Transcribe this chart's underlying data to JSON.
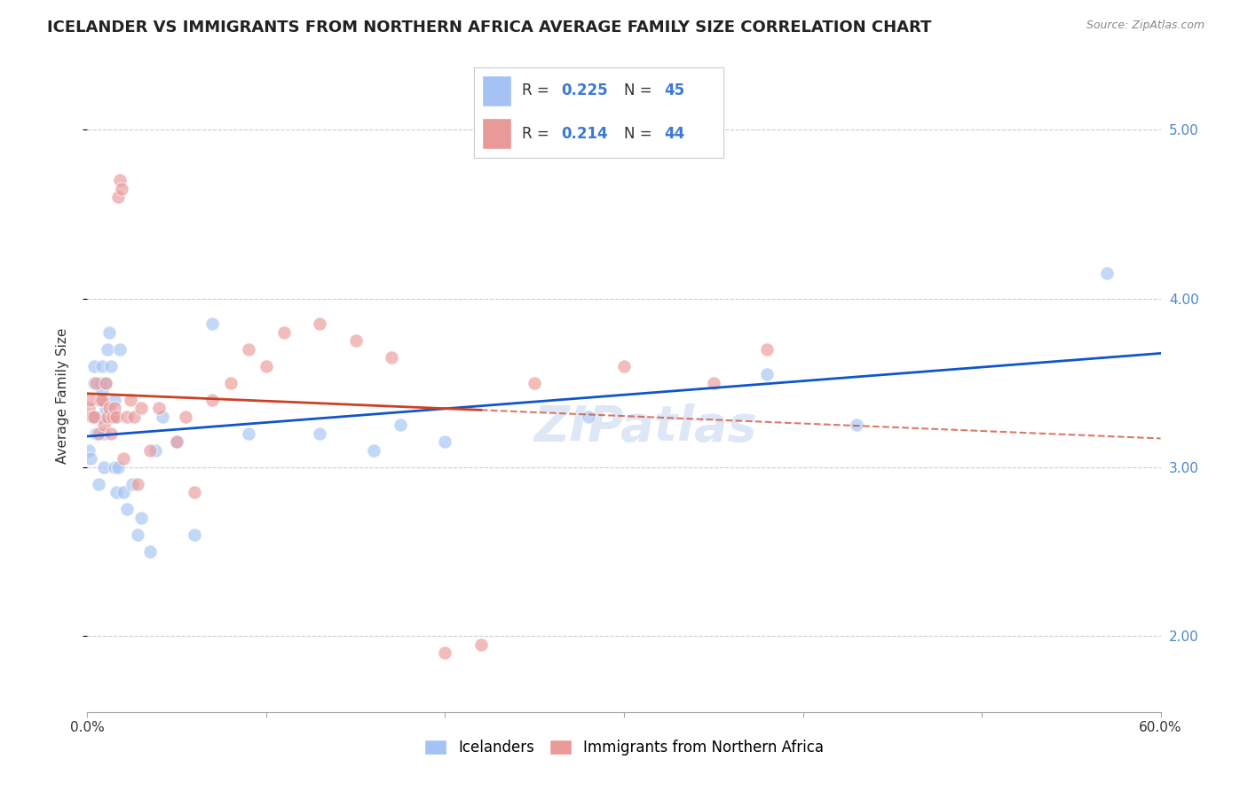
{
  "title": "ICELANDER VS IMMIGRANTS FROM NORTHERN AFRICA AVERAGE FAMILY SIZE CORRELATION CHART",
  "source": "Source: ZipAtlas.com",
  "ylabel": "Average Family Size",
  "xlim": [
    0.0,
    0.6
  ],
  "ylim": [
    1.55,
    5.3
  ],
  "yticks": [
    2.0,
    3.0,
    4.0,
    5.0
  ],
  "xticks": [
    0.0,
    0.1,
    0.2,
    0.3,
    0.4,
    0.5,
    0.6
  ],
  "xtick_labels": [
    "0.0%",
    "",
    "",
    "",
    "",
    "",
    "60.0%"
  ],
  "right_ytick_labels": [
    "2.00",
    "3.00",
    "4.00",
    "5.00"
  ],
  "blue_color": "#a4c2f4",
  "pink_color": "#ea9999",
  "blue_line_color": "#1155cc",
  "pink_line_color": "#cc4125",
  "series1_label": "Icelanders",
  "series2_label": "Immigrants from Northern Africa",
  "icelanders_x": [
    0.001,
    0.002,
    0.003,
    0.004,
    0.004,
    0.005,
    0.006,
    0.006,
    0.007,
    0.007,
    0.008,
    0.008,
    0.009,
    0.009,
    0.01,
    0.01,
    0.011,
    0.012,
    0.013,
    0.014,
    0.015,
    0.015,
    0.016,
    0.017,
    0.018,
    0.02,
    0.022,
    0.025,
    0.028,
    0.03,
    0.035,
    0.038,
    0.042,
    0.05,
    0.06,
    0.07,
    0.09,
    0.13,
    0.16,
    0.175,
    0.2,
    0.28,
    0.38,
    0.43,
    0.57
  ],
  "icelanders_y": [
    3.1,
    3.05,
    3.3,
    3.5,
    3.6,
    3.2,
    3.4,
    2.9,
    3.5,
    3.3,
    3.45,
    3.6,
    3.2,
    3.0,
    3.35,
    3.5,
    3.7,
    3.8,
    3.6,
    3.3,
    3.4,
    3.0,
    2.85,
    3.0,
    3.7,
    2.85,
    2.75,
    2.9,
    2.6,
    2.7,
    2.5,
    3.1,
    3.3,
    3.15,
    2.6,
    3.85,
    3.2,
    3.2,
    3.1,
    3.25,
    3.15,
    3.3,
    3.55,
    3.25,
    4.15
  ],
  "immigrants_x": [
    0.001,
    0.002,
    0.003,
    0.004,
    0.005,
    0.006,
    0.007,
    0.008,
    0.009,
    0.01,
    0.011,
    0.012,
    0.013,
    0.014,
    0.015,
    0.016,
    0.017,
    0.018,
    0.019,
    0.02,
    0.022,
    0.024,
    0.026,
    0.028,
    0.03,
    0.035,
    0.04,
    0.05,
    0.055,
    0.06,
    0.07,
    0.08,
    0.09,
    0.1,
    0.11,
    0.13,
    0.15,
    0.17,
    0.2,
    0.22,
    0.25,
    0.3,
    0.35,
    0.38
  ],
  "immigrants_y": [
    3.35,
    3.4,
    3.3,
    3.3,
    3.5,
    3.2,
    3.4,
    3.4,
    3.25,
    3.5,
    3.3,
    3.35,
    3.2,
    3.3,
    3.35,
    3.3,
    4.6,
    4.7,
    4.65,
    3.05,
    3.3,
    3.4,
    3.3,
    2.9,
    3.35,
    3.1,
    3.35,
    3.15,
    3.3,
    2.85,
    3.4,
    3.5,
    3.7,
    3.6,
    3.8,
    3.85,
    3.75,
    3.65,
    1.9,
    1.95,
    3.5,
    3.6,
    3.5,
    3.7
  ],
  "background_color": "#ffffff",
  "grid_color": "#cccccc",
  "title_fontsize": 13,
  "axis_label_fontsize": 11,
  "tick_fontsize": 11,
  "marker_size": 11,
  "marker_alpha": 0.65,
  "watermark_text": "ZIPatlas",
  "watermark_color": "#c8d8f0",
  "watermark_alpha": 0.6
}
